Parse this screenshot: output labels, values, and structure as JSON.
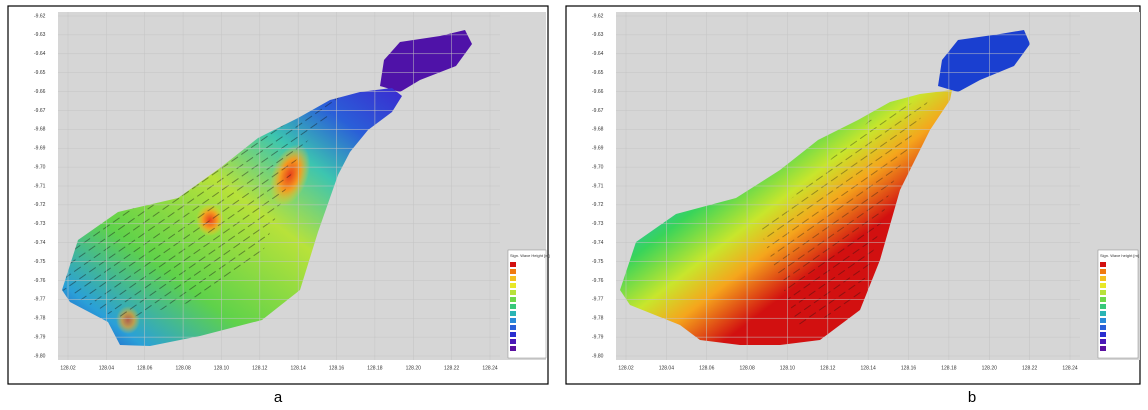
{
  "panels": [
    {
      "caption": "a",
      "legend_title": "Sign. Wave Height [m]",
      "yticks": [
        "-9.62",
        "-9.63",
        "-9.64",
        "-9.65",
        "-9.66",
        "-9.67",
        "-9.68",
        "-9.69",
        "-9.70",
        "-9.71",
        "-9.72",
        "-9.73",
        "-9.74",
        "-9.75",
        "-9.76",
        "-9.77",
        "-9.78",
        "-9.79",
        "-9.80"
      ],
      "xticks": [
        "128.02",
        "128.04",
        "128.06",
        "128.08",
        "128.10",
        "128.12",
        "128.14",
        "128.16",
        "128.18",
        "128.20",
        "128.22",
        "128.24"
      ]
    },
    {
      "caption": "b",
      "legend_title": "Sign. Wave height [m]",
      "yticks": [
        "-9.62",
        "-9.63",
        "-9.64",
        "-9.65",
        "-9.66",
        "-9.67",
        "-9.68",
        "-9.69",
        "-9.70",
        "-9.71",
        "-9.72",
        "-9.73",
        "-9.74",
        "-9.75",
        "-9.76",
        "-9.77",
        "-9.78",
        "-9.79",
        "-9.80"
      ],
      "xticks": [
        "128.02",
        "128.04",
        "128.06",
        "128.08",
        "128.10",
        "128.12",
        "128.14",
        "128.16",
        "128.18",
        "128.20",
        "128.22",
        "128.24"
      ]
    }
  ]
}
